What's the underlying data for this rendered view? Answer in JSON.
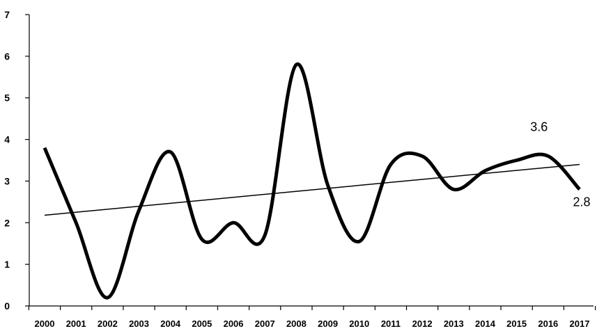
{
  "chart_data": {
    "type": "line",
    "title": "",
    "xlabel": "",
    "ylabel": "",
    "ylim": [
      0,
      7
    ],
    "yticks": [
      "0",
      "1",
      "2",
      "3",
      "4",
      "5",
      "6",
      "7"
    ],
    "grid": false,
    "legend": "none",
    "categories": [
      "2000",
      "2001",
      "2002",
      "2003",
      "2004",
      "2005",
      "2006",
      "2007",
      "2008",
      "2009",
      "2010",
      "2011",
      "2012",
      "2013",
      "2014",
      "2015",
      "2016",
      "2017"
    ],
    "series": [
      {
        "values": [
          3.8,
          2.0,
          0.2,
          2.3,
          3.7,
          1.6,
          2.0,
          1.7,
          5.8,
          2.9,
          1.55,
          3.4,
          3.6,
          2.8,
          3.25,
          3.5,
          3.6,
          2.8
        ],
        "color": "#000000",
        "smooth": true
      }
    ],
    "trendline": {
      "type": "linear",
      "start": 2.18,
      "end": 3.4,
      "color": "#000000"
    },
    "data_labels": [
      {
        "index": 16,
        "text": "3.6"
      },
      {
        "index": 17,
        "text": "2.8"
      }
    ]
  }
}
